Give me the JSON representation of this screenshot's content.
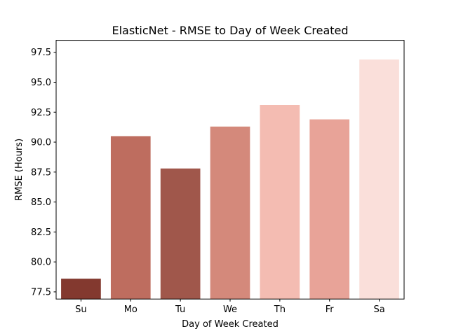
{
  "chart_data": {
    "type": "bar",
    "title": "ElasticNet - RMSE to Day of Week Created",
    "xlabel": "Day of Week Created",
    "ylabel": "RMSE (Hours)",
    "categories": [
      "Su",
      "Mo",
      "Tu",
      "We",
      "Th",
      "Fr",
      "Sa"
    ],
    "values": [
      78.6,
      90.5,
      87.8,
      91.3,
      93.1,
      91.9,
      96.9
    ],
    "colors": [
      "#83392f",
      "#be6d5f",
      "#a0574b",
      "#d4897b",
      "#f4bcb2",
      "#e8a398",
      "#fadfda"
    ],
    "ylim": [
      76.9,
      98.5
    ],
    "yticks": [
      77.5,
      80.0,
      82.5,
      85.0,
      87.5,
      90.0,
      92.5,
      95.0,
      97.5
    ],
    "ytick_labels": [
      "77.5",
      "80.0",
      "82.5",
      "85.0",
      "87.5",
      "90.0",
      "92.5",
      "95.0",
      "97.5"
    ],
    "grid": false,
    "legend": "none"
  }
}
